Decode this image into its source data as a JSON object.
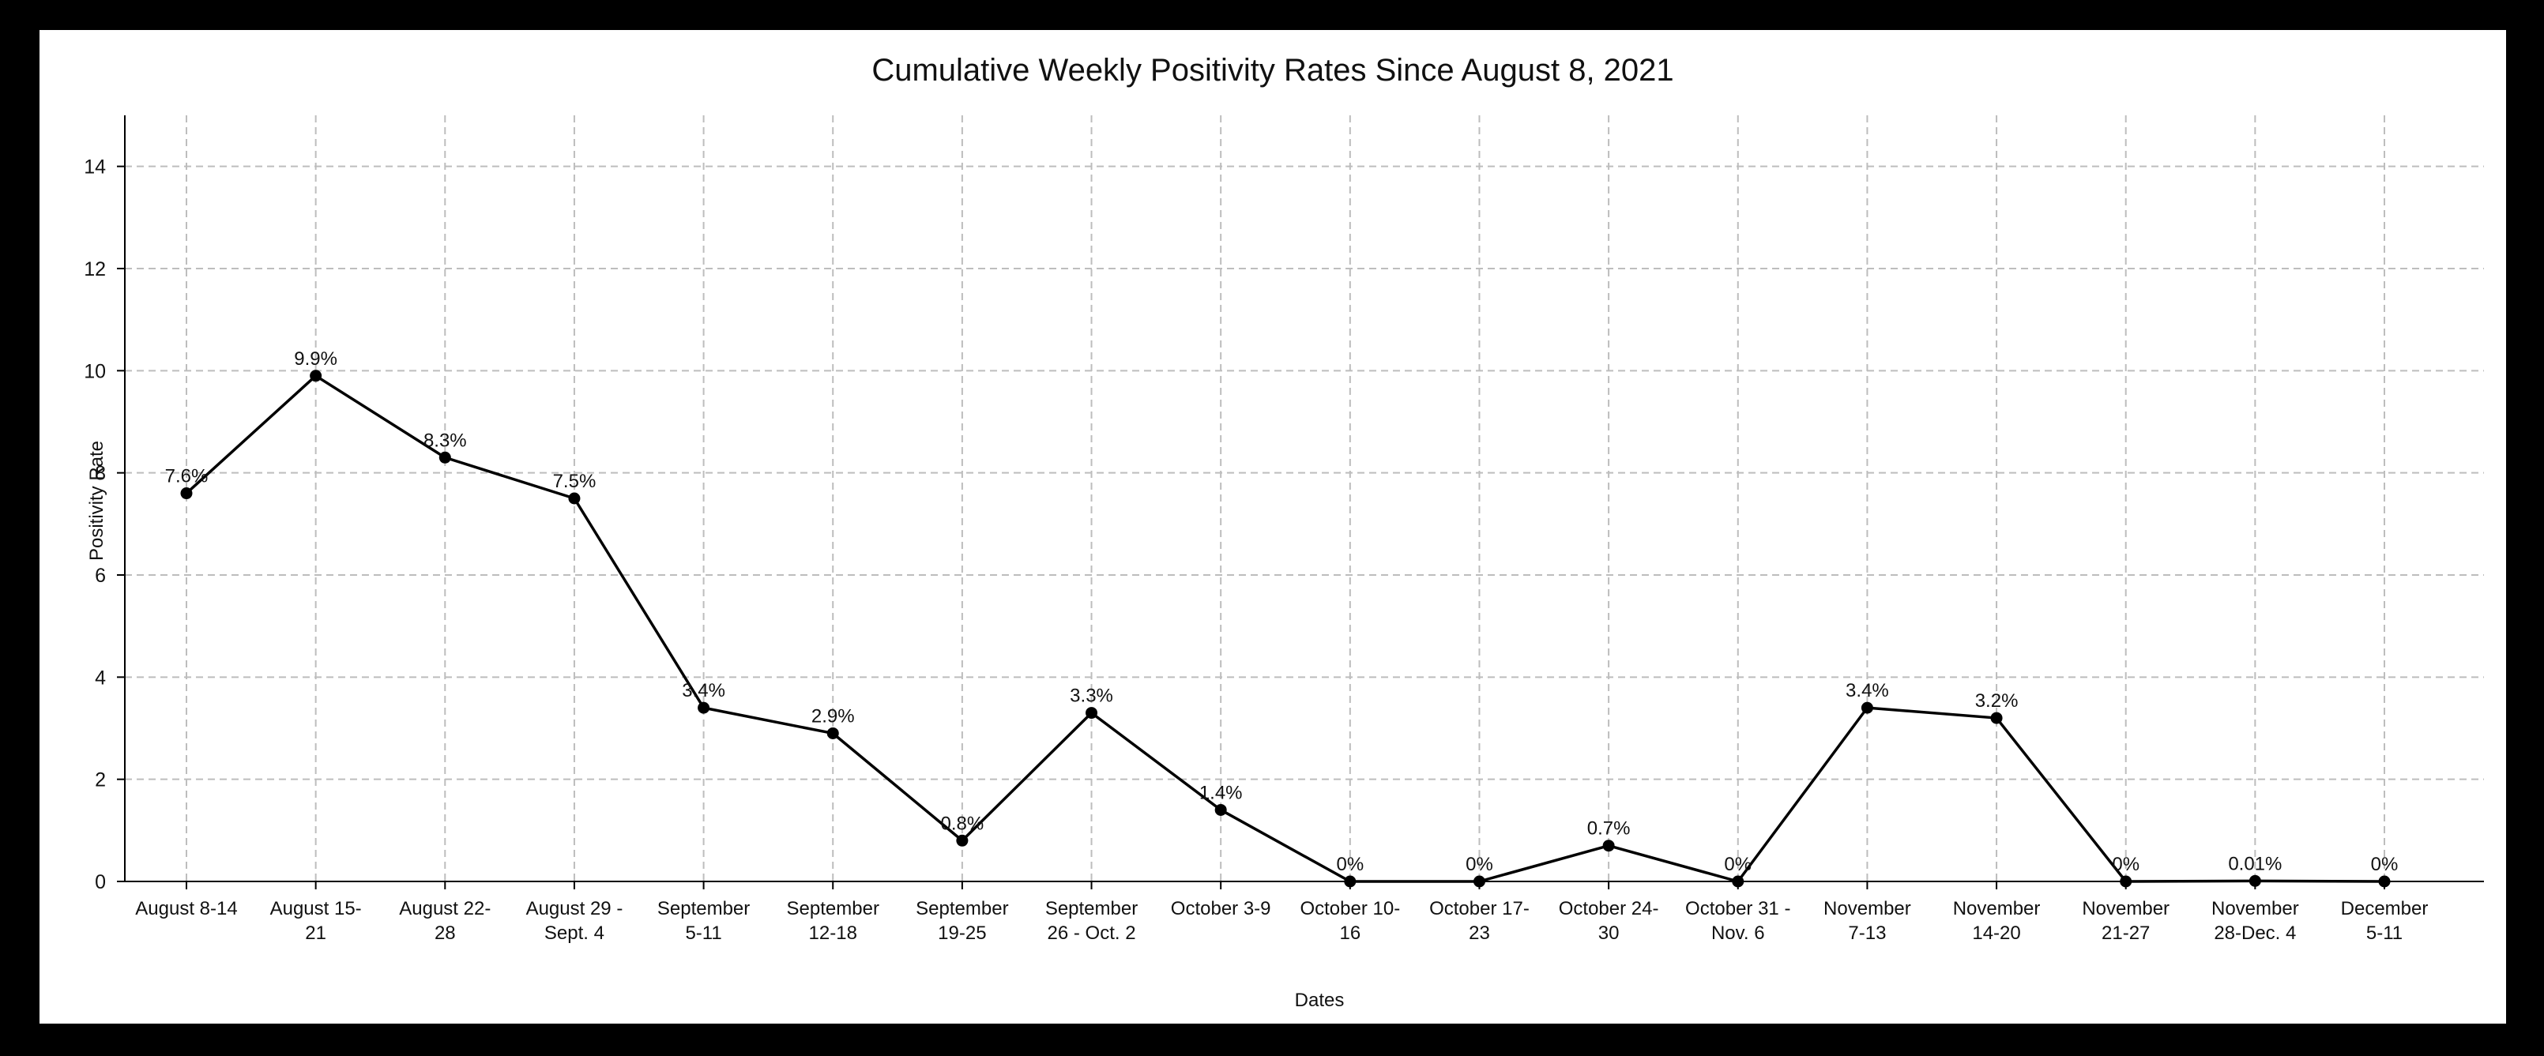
{
  "chart_data": {
    "type": "line",
    "title": "Cumulative Weekly Positivity Rates Since August 8, 2021",
    "xlabel": "Dates",
    "ylabel": "Positivity Rate",
    "ylim": [
      0,
      15
    ],
    "yticks": [
      0,
      2,
      4,
      6,
      8,
      10,
      12,
      14
    ],
    "grid": true,
    "categories": [
      [
        "August 8-14"
      ],
      [
        "August 15-",
        "21"
      ],
      [
        "August 22-",
        "28"
      ],
      [
        "August 29 -",
        "Sept. 4"
      ],
      [
        "September",
        "5-11"
      ],
      [
        "September",
        "12-18"
      ],
      [
        "September",
        "19-25"
      ],
      [
        "September",
        "26 - Oct. 2"
      ],
      [
        "October 3-9"
      ],
      [
        "October 10-",
        "16"
      ],
      [
        "October 17-",
        "23"
      ],
      [
        "October 24-",
        "30"
      ],
      [
        "October 31 -",
        "Nov. 6"
      ],
      [
        "November",
        "7-13"
      ],
      [
        "November",
        "14-20"
      ],
      [
        "November",
        "21-27"
      ],
      [
        "November",
        "28-Dec. 4"
      ],
      [
        "December",
        "5-11"
      ]
    ],
    "values": [
      7.6,
      9.9,
      8.3,
      7.5,
      3.4,
      2.9,
      0.8,
      3.3,
      1.4,
      0,
      0,
      0.7,
      0,
      3.4,
      3.2,
      0,
      0.01,
      0
    ],
    "data_labels": [
      "7.6%",
      "9.9%",
      "8.3%",
      "7.5%",
      "3.4%",
      "2.9%",
      "0.8%",
      "3.3%",
      "1.4%",
      "0%",
      "0%",
      "0.7%",
      "0%",
      "3.4%",
      "3.2%",
      "0%",
      "0.01%",
      "0%"
    ],
    "line_color": "#000000",
    "grid_color": "#bdbdbd"
  }
}
